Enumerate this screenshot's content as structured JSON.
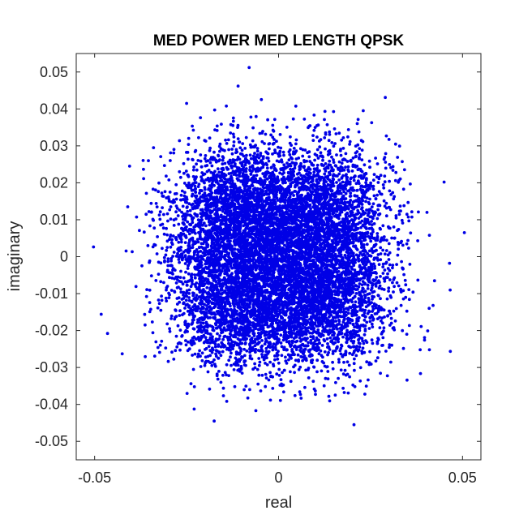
{
  "chart_data": {
    "type": "scatter",
    "title": "MED POWER MED LENGTH QPSK",
    "xlabel": "real",
    "ylabel": "imaginary",
    "xlim": [
      -0.055,
      0.055
    ],
    "ylim": [
      -0.055,
      0.055
    ],
    "xticks": [
      -0.05,
      0,
      0.05
    ],
    "xtick_labels": [
      "-0.05",
      "0",
      "0.05"
    ],
    "yticks": [
      0.05,
      0.04,
      0.03,
      0.02,
      0.01,
      0,
      -0.01,
      -0.02,
      -0.03,
      -0.04,
      -0.05
    ],
    "ytick_labels": [
      "0.05",
      "0.04",
      "0.03",
      "0.02",
      "0.01",
      "0",
      "-0.01",
      "-0.02",
      "-0.03",
      "-0.04",
      "-0.05"
    ],
    "grid": false,
    "marker_color": "#0000e6",
    "constellation_points": [
      {
        "x": -0.011,
        "y": 0.011
      },
      {
        "x": 0.011,
        "y": 0.011
      },
      {
        "x": -0.011,
        "y": -0.011
      },
      {
        "x": 0.011,
        "y": -0.011
      }
    ],
    "noise_sigma": 0.0095,
    "outliers": [
      {
        "x": -0.008,
        "y": 0.0512
      },
      {
        "x": -0.011,
        "y": 0.0462
      },
      {
        "x": 0.029,
        "y": 0.0431
      },
      {
        "x": 0.045,
        "y": 0.0202
      },
      {
        "x": 0.0505,
        "y": 0.0065
      },
      {
        "x": 0.041,
        "y": 0.0058
      },
      {
        "x": 0.042,
        "y": -0.0132
      },
      {
        "x": 0.041,
        "y": -0.0252
      },
      {
        "x": -0.0465,
        "y": -0.0208
      },
      {
        "x": -0.0425,
        "y": -0.0263
      },
      {
        "x": 0.0205,
        "y": -0.0455
      },
      {
        "x": -0.0175,
        "y": -0.0445
      },
      {
        "x": -0.025,
        "y": 0.0415
      },
      {
        "x": -0.041,
        "y": 0.0135
      },
      {
        "x": -0.0405,
        "y": 0.0245
      }
    ]
  }
}
